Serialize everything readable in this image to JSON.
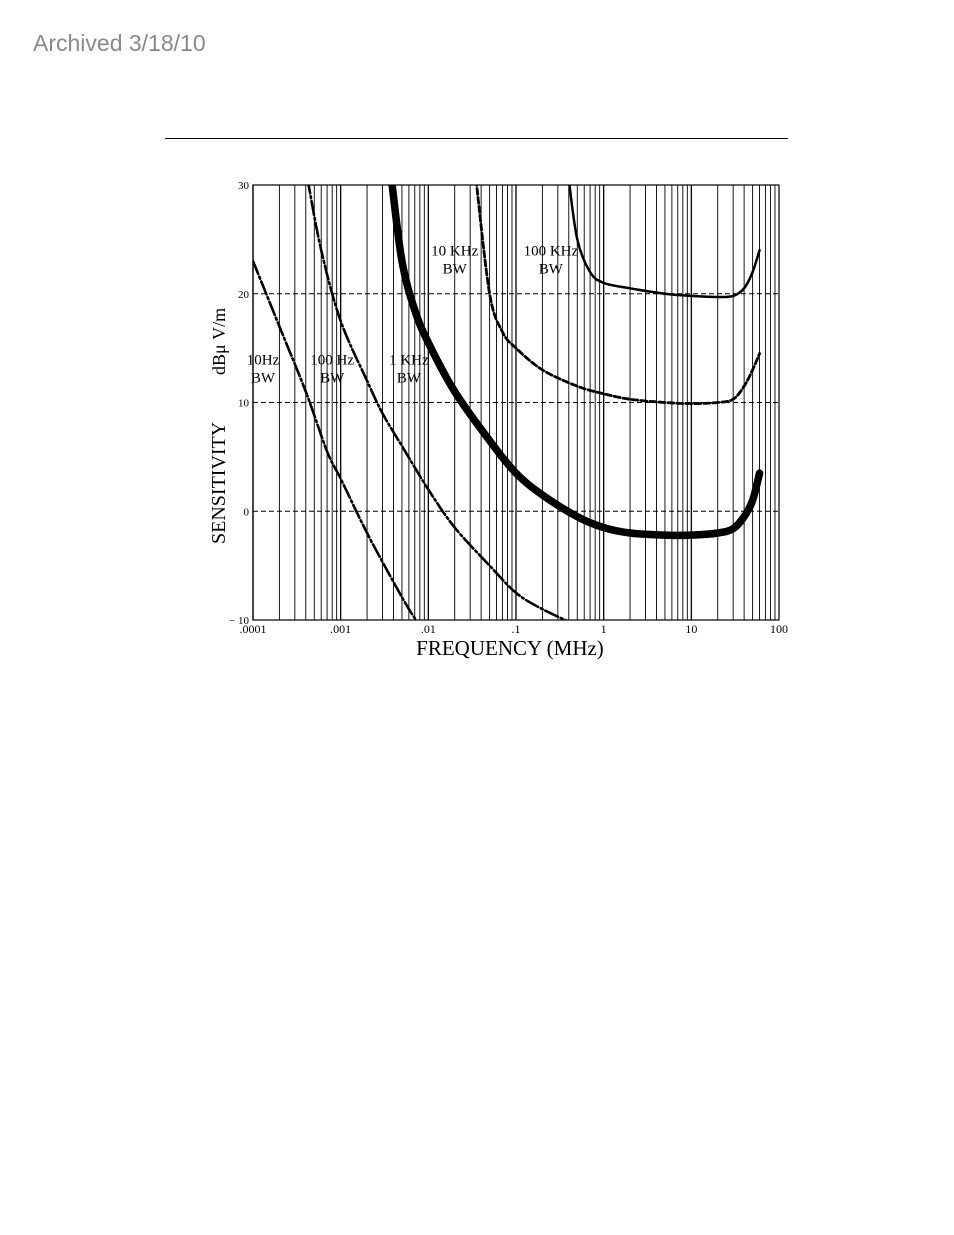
{
  "header": {
    "archived_stamp": "Archived 3/18/10"
  },
  "chart_data": {
    "type": "line",
    "title": "",
    "xlabel": "FREQUENCY (MHz)",
    "ylabel": "SENSITIVITY",
    "ylabel_unit": "dBμ V/m",
    "x_scale": "log",
    "xlim": [
      0.0001,
      100
    ],
    "ylim": [
      -10,
      30
    ],
    "x_ticks": [
      ".0001",
      ".001",
      ".01",
      ".1",
      "1",
      "10",
      "100"
    ],
    "y_ticks": [
      "30",
      "20",
      "10",
      "0",
      "− 10"
    ],
    "grid": "vertical log lines; dashed horizontals at 20, 10, 0",
    "series": [
      {
        "name": "10Hz BW",
        "style": "dash-dot",
        "x": [
          0.0001,
          0.0002,
          0.0004,
          0.0007,
          0.001,
          0.002,
          0.004,
          0.006,
          0.008
        ],
        "y": [
          23,
          17,
          11,
          5.5,
          3,
          -2,
          -6.5,
          -9,
          -10.5
        ]
      },
      {
        "name": "100 Hz BW",
        "style": "dash-dot",
        "x": [
          0.00042,
          0.0006,
          0.001,
          0.002,
          0.003,
          0.005,
          0.01,
          0.02,
          0.05,
          0.1,
          0.2,
          0.5
        ],
        "y": [
          30.5,
          24,
          17.5,
          12,
          9,
          6,
          2,
          -1.5,
          -5,
          -7.5,
          -9,
          -10.5
        ]
      },
      {
        "name": "1 KHz BW",
        "style": "thick",
        "x": [
          0.0038,
          0.005,
          0.007,
          0.01,
          0.02,
          0.05,
          0.1,
          0.2,
          0.5,
          1,
          2,
          5,
          10,
          20,
          30,
          40,
          50,
          60
        ],
        "y": [
          30.5,
          23,
          18.5,
          15.5,
          11,
          6.5,
          3.5,
          1.5,
          -0.5,
          -1.5,
          -2,
          -2.2,
          -2.2,
          -2,
          -1.6,
          -0.5,
          1,
          3.5
        ]
      },
      {
        "name": "10 KHz BW",
        "style": "dashed",
        "x": [
          0.035,
          0.05,
          0.07,
          0.1,
          0.2,
          0.5,
          1,
          2,
          5,
          10,
          20,
          30,
          40,
          50,
          60
        ],
        "y": [
          30.5,
          20,
          16.5,
          15,
          13,
          11.5,
          10.8,
          10.3,
          10,
          9.9,
          10,
          10.3,
          11.5,
          13,
          14.5
        ]
      },
      {
        "name": "100 KHz BW",
        "style": "solid",
        "x": [
          0.4,
          0.5,
          0.7,
          1,
          2,
          5,
          10,
          20,
          30,
          40,
          50,
          60
        ],
        "y": [
          30.5,
          25,
          22,
          21,
          20.5,
          20,
          19.8,
          19.7,
          19.8,
          20.5,
          22,
          24
        ]
      }
    ],
    "annotations": [
      {
        "line1": "10Hz",
        "line2": "BW"
      },
      {
        "line1": "100 Hz",
        "line2": "BW"
      },
      {
        "line1": "1 KHz",
        "line2": "BW"
      },
      {
        "line1": "10 KHz",
        "line2": "BW"
      },
      {
        "line1": "100 KHz",
        "line2": "BW"
      }
    ]
  }
}
